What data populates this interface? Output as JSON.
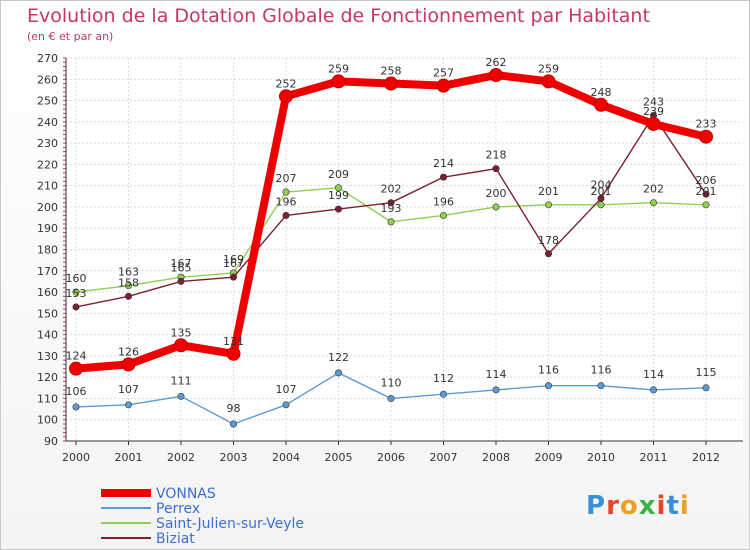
{
  "title": "Evolution de la Dotation Globale de Fonctionnement par Habitant",
  "subtitle": "(en € et par an)",
  "logo": {
    "text": "Proxiti",
    "colors": [
      "#3a8fd6",
      "#e8442a",
      "#f0a020",
      "#3ab34a",
      "#e8442a",
      "#3a8fd6",
      "#f0a020"
    ]
  },
  "chart_data": {
    "type": "line",
    "title": "Evolution de la Dotation Globale de Fonctionnement par Habitant",
    "ylabel": "(en € et par an)",
    "xlabel": "",
    "x": [
      "2000",
      "2001",
      "2002",
      "2003",
      "2004",
      "2005",
      "2006",
      "2007",
      "2008",
      "2009",
      "2010",
      "2011",
      "2012"
    ],
    "ylim": [
      90,
      270
    ],
    "yticks": [
      90,
      100,
      110,
      120,
      130,
      140,
      150,
      160,
      170,
      180,
      190,
      200,
      210,
      220,
      230,
      240,
      250,
      260,
      270
    ],
    "grid": true,
    "legend_position": "bottom-left",
    "series": [
      {
        "name": "VONNAS",
        "color": "#ee0000",
        "values": [
          124,
          126,
          135,
          131,
          252,
          259,
          258,
          257,
          262,
          259,
          248,
          239,
          233
        ]
      },
      {
        "name": "Perrex",
        "color": "#5b9bd5",
        "values": [
          106,
          107,
          111,
          98,
          107,
          122,
          110,
          112,
          114,
          116,
          116,
          114,
          115
        ]
      },
      {
        "name": "Saint-Julien-sur-Veyle",
        "color": "#8fd050",
        "values": [
          160,
          163,
          167,
          169,
          207,
          209,
          193,
          196,
          200,
          201,
          201,
          202,
          201
        ]
      },
      {
        "name": "Biziat",
        "color": "#7a2030",
        "values": [
          153,
          158,
          165,
          167,
          196,
          199,
          202,
          214,
          218,
          178,
          204,
          243,
          206
        ]
      }
    ]
  }
}
